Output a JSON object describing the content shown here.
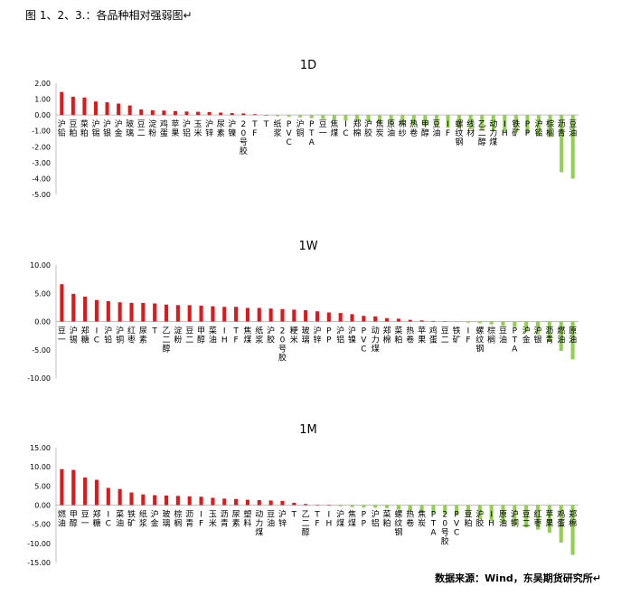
{
  "caption": "图 1、2、3.：各品种相对强弱图↵",
  "footer": "数据来源：Wind，东吴期货研究所↵",
  "colors": {
    "positive": "#e0181b",
    "negative": "#92d050",
    "axis": "#bfbfbf"
  },
  "chart_data": [
    {
      "type": "bar",
      "title": "1D",
      "ylim": [
        -5,
        2
      ],
      "yticks": [
        2,
        1,
        0,
        -1,
        -2,
        -3,
        -4,
        -5
      ],
      "tick_format": "2",
      "grid": false,
      "legend": "none",
      "categories": [
        "沪铅",
        "豆粕",
        "菜粕",
        "沪锡",
        "沪银",
        "沪金",
        "玻璃",
        "豆二",
        "淀粉",
        "鸡蛋",
        "苹果",
        "沪铝",
        "玉米",
        "沪锌",
        "尿素",
        "沪镍",
        "20号胶",
        "TF",
        "T",
        "纸浆",
        "PVC",
        "沪铜",
        "PTA",
        "豆一",
        "焦煤",
        "IC",
        "郑棉",
        "沪胶",
        "焦炭",
        "原油",
        "棉纱",
        "热卷",
        "甲醇",
        "豆油",
        "IF",
        "螺纹钢",
        "线材",
        "乙二醇",
        "动力煤",
        "IH",
        "铁矿",
        "PP",
        "沪铅",
        "棕榈",
        "沥青",
        "豆油"
      ],
      "values": [
        1.45,
        1.15,
        1.1,
        0.85,
        0.8,
        0.72,
        0.6,
        0.35,
        0.3,
        0.28,
        0.25,
        0.22,
        0.2,
        0.18,
        0.15,
        0.12,
        0.1,
        0.05,
        0.0,
        -0.08,
        -0.1,
        -0.15,
        -0.2,
        -0.25,
        -0.3,
        -0.35,
        -0.4,
        -0.45,
        -0.5,
        -0.55,
        -0.6,
        -0.65,
        -0.7,
        -0.75,
        -0.8,
        -0.85,
        -0.9,
        -0.95,
        -1.0,
        -1.05,
        -1.1,
        -1.2,
        -1.3,
        -1.4,
        -3.6,
        -4.0
      ]
    },
    {
      "type": "bar",
      "title": "1W",
      "ylim": [
        -10,
        10
      ],
      "yticks": [
        10,
        5,
        0,
        -5,
        -10
      ],
      "tick_format": "2",
      "grid": false,
      "legend": "none",
      "categories": [
        "豆一",
        "沪锡",
        "郑糖",
        "IC",
        "沪铅",
        "沪铜",
        "红枣",
        "尿素",
        "T",
        "乙二醇",
        "淀粉",
        "豆二",
        "甲醇",
        "菜油",
        "IH",
        "TF",
        "焦煤",
        "纸浆",
        "沪胶",
        "20号胶",
        "粳米",
        "玻璃",
        "沪锌",
        "PP",
        "沪铝",
        "沪镍",
        "PVC",
        "动力煤",
        "郑棉",
        "菜粕",
        "热卷",
        "苹果",
        "鸡蛋",
        "豆二",
        "铁矿",
        "IF",
        "螺纹钢",
        "棕榈",
        "豆油",
        "PTA",
        "沪金",
        "沪银",
        "沥青",
        "燃油",
        "原油"
      ],
      "values": [
        6.6,
        4.9,
        4.4,
        3.8,
        3.6,
        3.4,
        3.3,
        3.3,
        3.2,
        3.0,
        2.9,
        2.9,
        2.8,
        2.7,
        2.6,
        2.6,
        2.4,
        2.4,
        2.3,
        2.2,
        2.1,
        2.0,
        1.8,
        1.6,
        1.5,
        1.3,
        1.0,
        0.9,
        0.6,
        0.5,
        0.3,
        0.2,
        0.1,
        0.05,
        -0.1,
        -0.2,
        -0.3,
        -0.5,
        -0.8,
        -1.0,
        -1.8,
        -2.3,
        -3.6,
        -5.2,
        -6.7
      ]
    },
    {
      "type": "bar",
      "title": "1M",
      "ylim": [
        -15,
        15
      ],
      "yticks": [
        15,
        10,
        5,
        0,
        -5,
        -10,
        -15
      ],
      "tick_format": "2",
      "grid": false,
      "legend": "none",
      "categories": [
        "燃油",
        "甲醇",
        "豆一",
        "郑糖",
        "IC",
        "菜油",
        "铁矿",
        "纸浆",
        "沪金",
        "玻璃",
        "棕榈",
        "沥青",
        "IF",
        "玉米",
        "沥青",
        "尿素",
        "塑料",
        "动力煤",
        "豆油",
        "沪锌",
        "T",
        "乙二醇",
        "TF",
        "IH",
        "沪煤",
        "焦煤",
        "PP",
        "沪铝",
        "菜粕",
        "螺纹钢",
        "热卷",
        "焦炭",
        "PTA",
        "20号胶",
        "PVC",
        "豆粕",
        "沪胶",
        "IH",
        "原油",
        "沪铜",
        "豆二",
        "红枣",
        "苹果",
        "鸡蛋",
        "郑棉"
      ],
      "values": [
        9.4,
        9.2,
        7.2,
        6.6,
        4.5,
        4.2,
        3.3,
        2.8,
        2.6,
        2.5,
        2.4,
        2.3,
        2.2,
        1.9,
        1.7,
        1.6,
        1.4,
        1.3,
        1.2,
        1.1,
        0.6,
        0.3,
        0.1,
        0.0,
        -0.3,
        -0.5,
        -0.6,
        -0.7,
        -0.8,
        -1.2,
        -1.5,
        -1.8,
        -2.0,
        -2.4,
        -2.7,
        -3.1,
        -3.7,
        -4.2,
        -4.7,
        -5.3,
        -5.8,
        -6.4,
        -7.2,
        -9.8,
        -13.0
      ]
    }
  ]
}
